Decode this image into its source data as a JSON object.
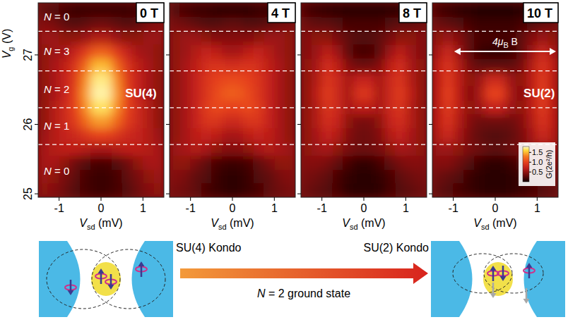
{
  "chart_data": [
    {
      "type": "heatmap",
      "title": "0 T",
      "x": [
        -1.375,
        -1.125,
        -0.875,
        -0.625,
        -0.375,
        -0.125,
        0.125,
        0.375,
        0.625,
        0.875,
        1.125,
        1.375
      ],
      "y": [
        25.05,
        25.25,
        25.45,
        25.65,
        25.85,
        26.05,
        26.25,
        26.45,
        26.65,
        26.85,
        27.05,
        27.25,
        27.45,
        27.65
      ],
      "values": [
        [
          0.5,
          0.45,
          0.35,
          0.25,
          0.2,
          0.15,
          0.15,
          0.2,
          0.25,
          0.35,
          0.45,
          0.5
        ],
        [
          0.55,
          0.5,
          0.4,
          0.3,
          0.2,
          0.15,
          0.15,
          0.2,
          0.3,
          0.4,
          0.5,
          0.55
        ],
        [
          0.6,
          0.6,
          0.5,
          0.35,
          0.25,
          0.2,
          0.2,
          0.25,
          0.35,
          0.5,
          0.6,
          0.6
        ],
        [
          0.6,
          0.65,
          0.7,
          0.7,
          0.65,
          0.6,
          0.6,
          0.65,
          0.7,
          0.7,
          0.65,
          0.6
        ],
        [
          0.55,
          0.65,
          0.75,
          0.8,
          0.9,
          1.0,
          1.0,
          0.9,
          0.8,
          0.75,
          0.65,
          0.55
        ],
        [
          0.5,
          0.65,
          0.8,
          0.95,
          1.2,
          1.4,
          1.4,
          1.2,
          0.95,
          0.8,
          0.65,
          0.5
        ],
        [
          0.5,
          0.65,
          0.8,
          1.0,
          1.35,
          1.65,
          1.65,
          1.35,
          1.0,
          0.8,
          0.65,
          0.5
        ],
        [
          0.5,
          0.6,
          0.75,
          1.0,
          1.4,
          1.75,
          1.75,
          1.4,
          1.0,
          0.75,
          0.6,
          0.5
        ],
        [
          0.5,
          0.6,
          0.75,
          0.95,
          1.35,
          1.7,
          1.7,
          1.35,
          0.95,
          0.75,
          0.6,
          0.5
        ],
        [
          0.5,
          0.6,
          0.7,
          0.9,
          1.2,
          1.5,
          1.5,
          1.2,
          0.9,
          0.7,
          0.6,
          0.5
        ],
        [
          0.5,
          0.55,
          0.6,
          0.75,
          0.95,
          1.15,
          1.15,
          0.95,
          0.75,
          0.6,
          0.55,
          0.5
        ],
        [
          0.55,
          0.55,
          0.5,
          0.5,
          0.55,
          0.65,
          0.65,
          0.55,
          0.5,
          0.5,
          0.55,
          0.55
        ],
        [
          0.45,
          0.4,
          0.3,
          0.25,
          0.3,
          0.35,
          0.35,
          0.3,
          0.25,
          0.3,
          0.4,
          0.45
        ],
        [
          0.3,
          0.25,
          0.2,
          0.15,
          0.15,
          0.15,
          0.15,
          0.15,
          0.15,
          0.2,
          0.25,
          0.3
        ]
      ],
      "xlim": [
        -1.5,
        1.5
      ],
      "ylim": [
        24.95,
        27.75
      ],
      "xticks": [
        -1,
        0,
        1
      ],
      "yticks": [
        25,
        26,
        27
      ],
      "xlabel": [
        "V",
        "sd",
        " (mV)"
      ],
      "ylabel": [
        "V",
        "g",
        " (V)"
      ],
      "boundaries": [
        25.71,
        26.24,
        26.77,
        27.34
      ],
      "region_labels": [
        "N = 0",
        "N = 1",
        "N = 2",
        "N = 3",
        "N = 0"
      ],
      "annotations": [
        {
          "text": "SU(4)",
          "x": 0.95,
          "y": 26.45
        }
      ]
    },
    {
      "type": "heatmap",
      "title": "4 T",
      "x": [
        -1.375,
        -1.125,
        -0.875,
        -0.625,
        -0.375,
        -0.125,
        0.125,
        0.375,
        0.625,
        0.875,
        1.125,
        1.375
      ],
      "y": [
        25.05,
        25.25,
        25.45,
        25.65,
        25.85,
        26.05,
        26.25,
        26.45,
        26.65,
        26.85,
        27.05,
        27.25,
        27.45,
        27.65
      ],
      "values": [
        [
          0.4,
          0.35,
          0.3,
          0.2,
          0.15,
          0.1,
          0.1,
          0.15,
          0.2,
          0.3,
          0.35,
          0.4
        ],
        [
          0.45,
          0.4,
          0.3,
          0.25,
          0.15,
          0.1,
          0.1,
          0.15,
          0.25,
          0.3,
          0.4,
          0.45
        ],
        [
          0.5,
          0.5,
          0.4,
          0.3,
          0.2,
          0.15,
          0.15,
          0.2,
          0.3,
          0.4,
          0.5,
          0.5
        ],
        [
          0.55,
          0.6,
          0.65,
          0.6,
          0.5,
          0.45,
          0.45,
          0.5,
          0.6,
          0.65,
          0.6,
          0.55
        ],
        [
          0.5,
          0.6,
          0.7,
          0.75,
          0.7,
          0.6,
          0.6,
          0.7,
          0.75,
          0.7,
          0.6,
          0.5
        ],
        [
          0.5,
          0.6,
          0.75,
          0.9,
          0.9,
          0.8,
          0.8,
          0.9,
          0.9,
          0.75,
          0.6,
          0.5
        ],
        [
          0.5,
          0.6,
          0.75,
          0.95,
          1.05,
          1.0,
          1.0,
          1.05,
          0.95,
          0.75,
          0.6,
          0.5
        ],
        [
          0.5,
          0.6,
          0.75,
          0.9,
          1.05,
          1.15,
          1.15,
          1.05,
          0.9,
          0.75,
          0.6,
          0.5
        ],
        [
          0.5,
          0.6,
          0.75,
          0.9,
          1.0,
          1.05,
          1.05,
          1.0,
          0.9,
          0.75,
          0.6,
          0.5
        ],
        [
          0.5,
          0.6,
          0.7,
          0.85,
          0.9,
          0.85,
          0.85,
          0.9,
          0.85,
          0.7,
          0.6,
          0.5
        ],
        [
          0.5,
          0.55,
          0.65,
          0.75,
          0.7,
          0.6,
          0.6,
          0.7,
          0.75,
          0.65,
          0.55,
          0.5
        ],
        [
          0.5,
          0.55,
          0.55,
          0.5,
          0.45,
          0.45,
          0.45,
          0.45,
          0.5,
          0.55,
          0.55,
          0.5
        ],
        [
          0.4,
          0.35,
          0.3,
          0.25,
          0.25,
          0.3,
          0.3,
          0.25,
          0.25,
          0.3,
          0.35,
          0.4
        ],
        [
          0.25,
          0.2,
          0.15,
          0.15,
          0.1,
          0.1,
          0.1,
          0.1,
          0.15,
          0.15,
          0.2,
          0.25
        ]
      ],
      "xlim": [
        -1.5,
        1.5
      ],
      "ylim": [
        24.95,
        27.75
      ],
      "xticks": [
        -1,
        0,
        1
      ],
      "yticks": [
        25,
        26,
        27
      ],
      "tick_labels": "x",
      "xlabel": [
        "V",
        "sd",
        " (mV)"
      ],
      "boundaries": [
        25.71,
        26.24,
        26.77,
        27.34
      ]
    },
    {
      "type": "heatmap",
      "title": "8 T",
      "x": [
        -1.375,
        -1.125,
        -0.875,
        -0.625,
        -0.375,
        -0.125,
        0.125,
        0.375,
        0.625,
        0.875,
        1.125,
        1.375
      ],
      "y": [
        25.05,
        25.25,
        25.45,
        25.65,
        25.85,
        26.05,
        26.25,
        26.45,
        26.65,
        26.85,
        27.05,
        27.25,
        27.45,
        27.65
      ],
      "values": [
        [
          0.35,
          0.3,
          0.25,
          0.2,
          0.1,
          0.08,
          0.08,
          0.1,
          0.2,
          0.25,
          0.3,
          0.35
        ],
        [
          0.4,
          0.35,
          0.3,
          0.2,
          0.12,
          0.08,
          0.08,
          0.12,
          0.2,
          0.3,
          0.35,
          0.4
        ],
        [
          0.45,
          0.45,
          0.4,
          0.3,
          0.2,
          0.12,
          0.12,
          0.2,
          0.3,
          0.4,
          0.45,
          0.45
        ],
        [
          0.5,
          0.55,
          0.6,
          0.5,
          0.4,
          0.35,
          0.35,
          0.4,
          0.5,
          0.6,
          0.55,
          0.5
        ],
        [
          0.5,
          0.6,
          0.75,
          0.65,
          0.45,
          0.35,
          0.35,
          0.45,
          0.65,
          0.75,
          0.6,
          0.5
        ],
        [
          0.5,
          0.65,
          0.85,
          0.75,
          0.5,
          0.4,
          0.4,
          0.5,
          0.75,
          0.85,
          0.65,
          0.5
        ],
        [
          0.5,
          0.65,
          0.9,
          0.8,
          0.6,
          0.7,
          0.7,
          0.6,
          0.8,
          0.9,
          0.65,
          0.5
        ],
        [
          0.5,
          0.7,
          0.95,
          0.8,
          0.6,
          0.9,
          0.9,
          0.6,
          0.8,
          0.95,
          0.7,
          0.5
        ],
        [
          0.5,
          0.65,
          0.9,
          0.8,
          0.6,
          0.75,
          0.75,
          0.6,
          0.8,
          0.9,
          0.65,
          0.5
        ],
        [
          0.5,
          0.6,
          0.85,
          0.7,
          0.45,
          0.35,
          0.35,
          0.45,
          0.7,
          0.85,
          0.6,
          0.5
        ],
        [
          0.45,
          0.55,
          0.7,
          0.55,
          0.3,
          0.2,
          0.2,
          0.3,
          0.55,
          0.7,
          0.55,
          0.45
        ],
        [
          0.45,
          0.5,
          0.5,
          0.4,
          0.3,
          0.25,
          0.25,
          0.3,
          0.4,
          0.5,
          0.5,
          0.45
        ],
        [
          0.35,
          0.3,
          0.3,
          0.25,
          0.2,
          0.2,
          0.2,
          0.2,
          0.25,
          0.3,
          0.3,
          0.35
        ],
        [
          0.2,
          0.15,
          0.12,
          0.1,
          0.08,
          0.08,
          0.08,
          0.08,
          0.1,
          0.12,
          0.15,
          0.2
        ]
      ],
      "xlim": [
        -1.5,
        1.5
      ],
      "ylim": [
        24.95,
        27.75
      ],
      "xticks": [
        -1,
        0,
        1
      ],
      "yticks": [
        25,
        26,
        27
      ],
      "tick_labels": "x",
      "xlabel": [
        "V",
        "sd",
        " (mV)"
      ],
      "boundaries": [
        25.71,
        26.24,
        26.77,
        27.34
      ]
    },
    {
      "type": "heatmap",
      "title": "10 T",
      "x": [
        -1.375,
        -1.125,
        -0.875,
        -0.625,
        -0.375,
        -0.125,
        0.125,
        0.375,
        0.625,
        0.875,
        1.125,
        1.375
      ],
      "y": [
        25.05,
        25.25,
        25.45,
        25.65,
        25.85,
        26.05,
        26.25,
        26.45,
        26.65,
        26.85,
        27.05,
        27.25,
        27.45,
        27.65
      ],
      "values": [
        [
          0.3,
          0.25,
          0.2,
          0.15,
          0.1,
          0.08,
          0.08,
          0.1,
          0.15,
          0.2,
          0.25,
          0.3
        ],
        [
          0.35,
          0.3,
          0.25,
          0.15,
          0.1,
          0.08,
          0.08,
          0.1,
          0.15,
          0.25,
          0.3,
          0.35
        ],
        [
          0.45,
          0.45,
          0.35,
          0.25,
          0.15,
          0.1,
          0.1,
          0.15,
          0.25,
          0.35,
          0.45,
          0.45
        ],
        [
          0.55,
          0.55,
          0.5,
          0.4,
          0.35,
          0.3,
          0.3,
          0.35,
          0.4,
          0.5,
          0.55,
          0.55
        ],
        [
          0.65,
          0.8,
          0.6,
          0.4,
          0.3,
          0.25,
          0.25,
          0.3,
          0.4,
          0.6,
          0.8,
          0.65
        ],
        [
          0.7,
          0.9,
          0.65,
          0.45,
          0.35,
          0.35,
          0.35,
          0.35,
          0.45,
          0.65,
          0.9,
          0.7
        ],
        [
          0.7,
          0.95,
          0.7,
          0.5,
          0.55,
          0.75,
          0.75,
          0.55,
          0.5,
          0.7,
          0.95,
          0.7
        ],
        [
          0.7,
          1.0,
          0.7,
          0.45,
          0.6,
          1.0,
          1.0,
          0.6,
          0.45,
          0.7,
          1.0,
          0.7
        ],
        [
          0.7,
          0.95,
          0.7,
          0.5,
          0.55,
          0.8,
          0.8,
          0.55,
          0.5,
          0.7,
          0.95,
          0.7
        ],
        [
          0.7,
          0.9,
          0.65,
          0.4,
          0.3,
          0.3,
          0.3,
          0.3,
          0.4,
          0.65,
          0.9,
          0.7
        ],
        [
          0.6,
          0.8,
          0.55,
          0.3,
          0.15,
          0.12,
          0.12,
          0.15,
          0.3,
          0.55,
          0.8,
          0.6
        ],
        [
          0.5,
          0.55,
          0.45,
          0.3,
          0.2,
          0.2,
          0.2,
          0.2,
          0.3,
          0.45,
          0.55,
          0.5
        ],
        [
          0.35,
          0.3,
          0.25,
          0.2,
          0.15,
          0.15,
          0.15,
          0.15,
          0.2,
          0.25,
          0.3,
          0.35
        ],
        [
          0.2,
          0.15,
          0.1,
          0.08,
          0.05,
          0.05,
          0.05,
          0.05,
          0.08,
          0.1,
          0.15,
          0.2
        ]
      ],
      "xlim": [
        -1.5,
        1.5
      ],
      "ylim": [
        24.95,
        27.75
      ],
      "xticks": [
        -1,
        0,
        1
      ],
      "yticks": [
        25,
        26,
        27
      ],
      "tick_labels": "x",
      "xlabel": [
        "V",
        "sd",
        " (mV)"
      ],
      "boundaries": [
        25.71,
        26.24,
        26.77,
        27.34
      ],
      "annotations": [
        {
          "text": "SU(2)",
          "x": 1.05,
          "y": 26.45
        }
      ],
      "arrow": {
        "text": [
          "4μ",
          "B",
          " B"
        ],
        "x": [
          -0.98,
          1.45
        ],
        "y": 27.05
      },
      "colorbar": {
        "range": [
          0,
          1.8
        ],
        "ticks": [
          0.5,
          {
            "value": 1,
            "label": "1.0"
          },
          1.5
        ],
        "label": "G(2e²/h)"
      }
    }
  ],
  "cartoon": {
    "left_label": "SU(4) Kondo",
    "right_label": "SU(2) Kondo",
    "arrow_label": "N = 2 ground state"
  }
}
